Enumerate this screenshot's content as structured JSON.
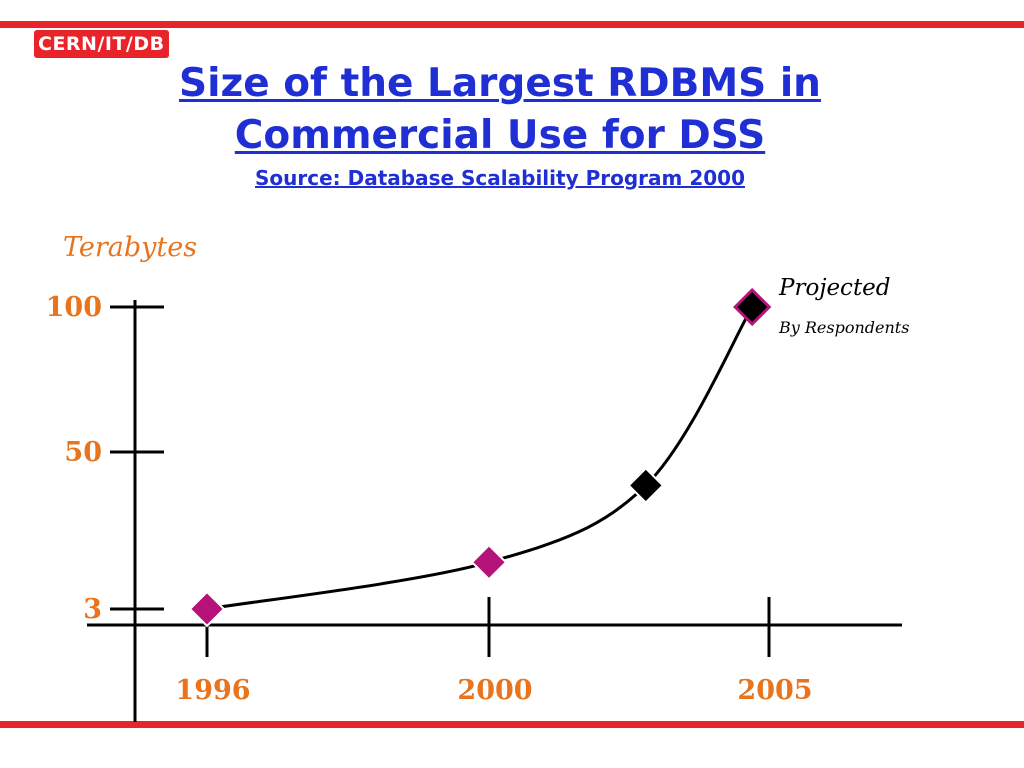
{
  "header": {
    "badge": "CERN/IT/DB",
    "title_line1": "Size of the Largest RDBMS in",
    "title_line2": "Commercial Use for DSS",
    "subtitle": "Source: Database Scalability Program 2000"
  },
  "colors": {
    "rule": "#e8232a",
    "title": "#1f2fd4",
    "axis_text": "#e8741e",
    "marker_survey": "#b5137a",
    "marker_projected": "#000000"
  },
  "chart_data": {
    "type": "line",
    "ylabel": "Terabytes",
    "xlabel": "",
    "x_ticks": [
      "1996",
      "2000",
      "2005"
    ],
    "y_ticks": [
      "3",
      "50",
      "100"
    ],
    "x_tick_values": [
      1996,
      2000,
      2005
    ],
    "y_tick_values": [
      3,
      50,
      100
    ],
    "xlim": [
      1994.7,
      2007.3
    ],
    "ylim": [
      -2,
      105
    ],
    "grid": false,
    "series": [
      {
        "name": "",
        "points": [
          {
            "x": 1996,
            "y": 3,
            "marker": "survey"
          },
          {
            "x": 2000,
            "y": 17,
            "marker": "survey"
          },
          {
            "x": 2002.8,
            "y": 40,
            "marker": "projected"
          },
          {
            "x": 2004.7,
            "y": 100,
            "marker": "survey"
          }
        ]
      }
    ],
    "annotation": {
      "line1": "Projected",
      "line2": "By Respondents"
    }
  }
}
